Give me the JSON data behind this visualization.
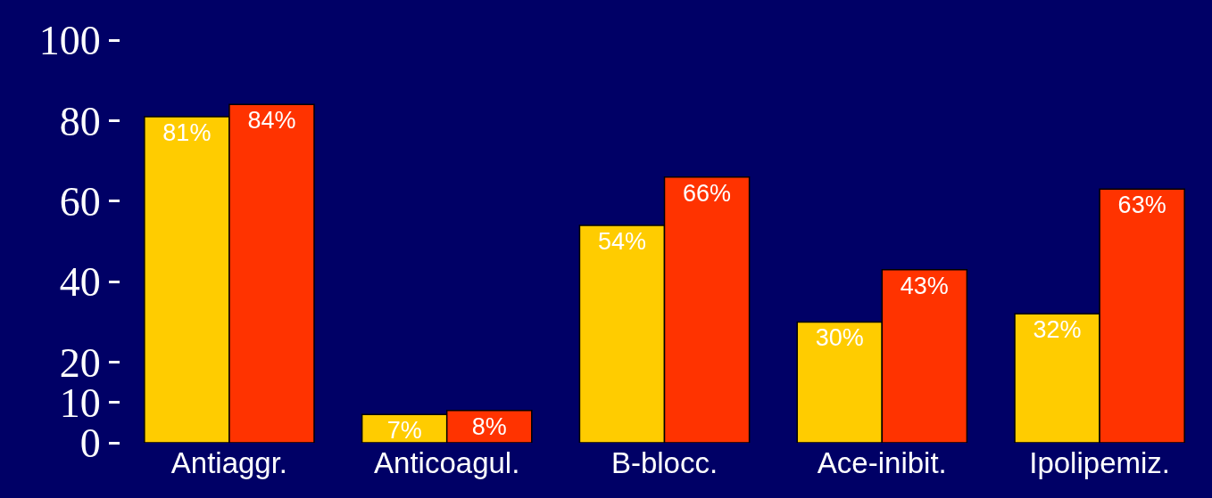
{
  "chart_data": {
    "type": "bar",
    "categories": [
      "Antiaggr.",
      "Anticoagul.",
      "B-blocc.",
      "Ace-inibit.",
      "Ipolipemiz."
    ],
    "series": [
      {
        "color": "#ffcc00",
        "values": [
          81,
          7,
          54,
          30,
          32
        ],
        "value_labels": [
          "81%",
          "7%",
          "54%",
          "30%",
          "32%"
        ]
      },
      {
        "color": "#ff3300",
        "values": [
          84,
          8,
          66,
          43,
          63
        ],
        "value_labels": [
          "84%",
          "8%",
          "66%",
          "43%",
          "63%"
        ]
      }
    ],
    "ylim": [
      0,
      100
    ],
    "yticks": [
      0,
      10,
      20,
      40,
      60,
      80,
      100
    ],
    "grid": false
  }
}
